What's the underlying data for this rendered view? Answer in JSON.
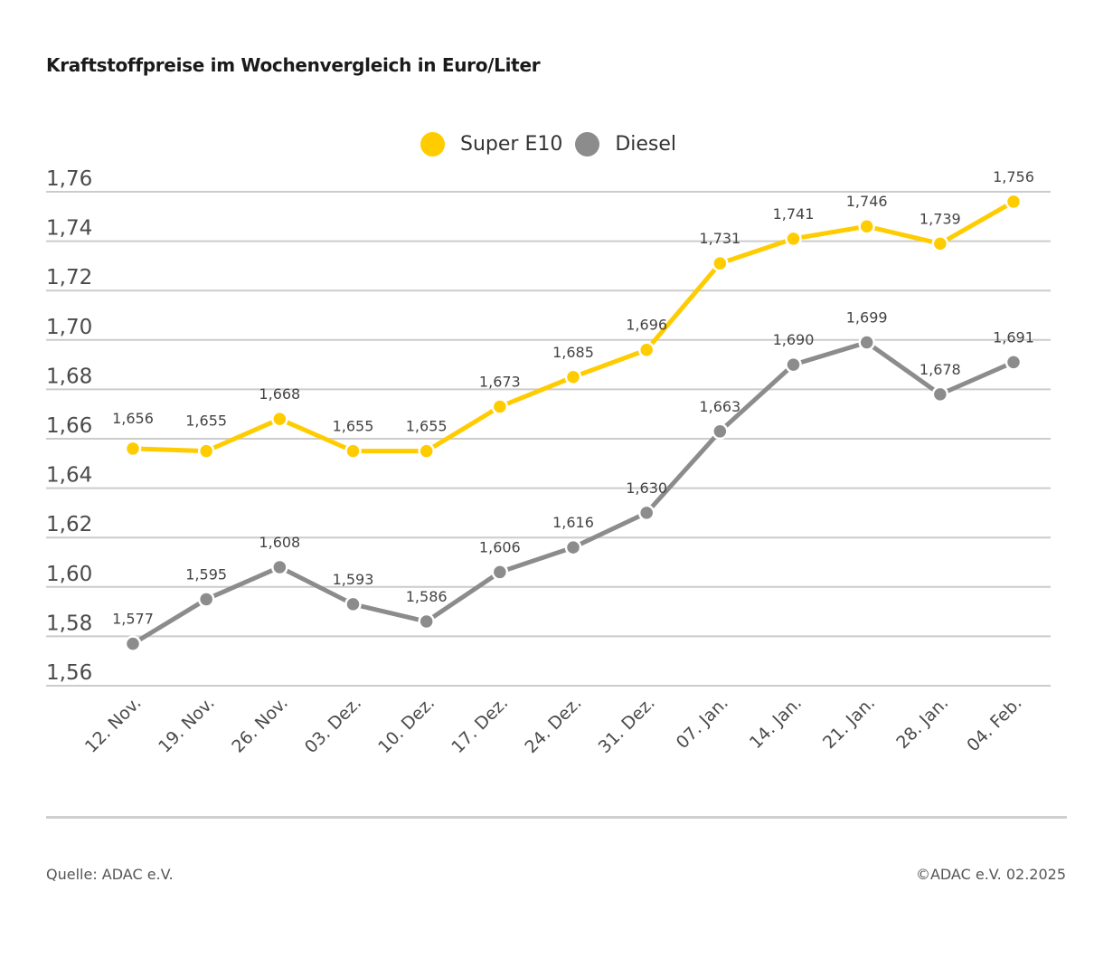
{
  "header": {
    "title": "Kraftstoffpreise im Wochenvergleich in Euro/Liter"
  },
  "legend": [
    {
      "label": "Super E10",
      "color": "#ffcc00"
    },
    {
      "label": "Diesel",
      "color": "#8c8c8c"
    }
  ],
  "footer": {
    "source": "Quelle: ADAC e.V.",
    "copyright": "©ADAC e.V. 02.2025"
  },
  "chart_data": {
    "type": "line",
    "title": "Kraftstoffpreise im Wochenvergleich in Euro/Liter",
    "xlabel": "",
    "ylabel": "",
    "ylim": [
      1.56,
      1.76
    ],
    "yticks": [
      "1,76",
      "1,74",
      "1,72",
      "1,70",
      "1,68",
      "1,66",
      "1,64",
      "1,62",
      "1,60",
      "1,58",
      "1,56"
    ],
    "ytick_values": [
      1.76,
      1.74,
      1.72,
      1.7,
      1.68,
      1.66,
      1.64,
      1.62,
      1.6,
      1.58,
      1.56
    ],
    "grid": true,
    "legend_position": "top-center",
    "categories": [
      "12. Nov.",
      "19. Nov.",
      "26. Nov.",
      "03. Dez.",
      "10. Dez.",
      "17. Dez.",
      "24. Dez.",
      "31. Dez.",
      "07. Jan.",
      "14. Jan.",
      "21. Jan.",
      "28. Jan.",
      "04. Feb."
    ],
    "series": [
      {
        "name": "Super E10",
        "color": "#ffcc00",
        "values": [
          1.656,
          1.655,
          1.668,
          1.655,
          1.655,
          1.673,
          1.685,
          1.696,
          1.731,
          1.741,
          1.746,
          1.739,
          1.756
        ],
        "labels": [
          "1,656",
          "1,655",
          "1,668",
          "1,655",
          "1,655",
          "1,673",
          "1,685",
          "1,696",
          "1,731",
          "1,741",
          "1,746",
          "1,739",
          "1,756"
        ]
      },
      {
        "name": "Diesel",
        "color": "#8c8c8c",
        "values": [
          1.577,
          1.595,
          1.608,
          1.593,
          1.586,
          1.606,
          1.616,
          1.63,
          1.663,
          1.69,
          1.699,
          1.678,
          1.691
        ],
        "labels": [
          "1,577",
          "1,595",
          "1,608",
          "1,593",
          "1,586",
          "1,606",
          "1,616",
          "1,630",
          "1,663",
          "1,690",
          "1,699",
          "1,678",
          "1,691"
        ]
      }
    ]
  }
}
